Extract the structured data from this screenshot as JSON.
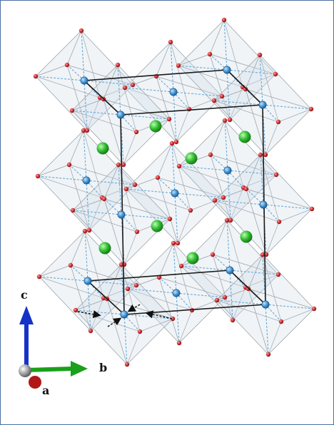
{
  "axes": {
    "c_label": "c",
    "b_label": "b",
    "a_label": "a",
    "c_color": "#1533c8",
    "b_color": "#1aa01a",
    "a_color": "#b01818",
    "origin_color": "#8a8a8a"
  },
  "atoms": {
    "octahedral_center_color": "#3b8fd1",
    "apex_color": "#c8262a",
    "interstitial_color": "#2fba2f"
  },
  "polyhedra": {
    "fill_color": "#d5e0ea",
    "edge_color": "#9aa2aa"
  },
  "unit_cell": {
    "edge_color": "#1a1a1a"
  },
  "displacement_arrows": {
    "color": "#111111"
  }
}
